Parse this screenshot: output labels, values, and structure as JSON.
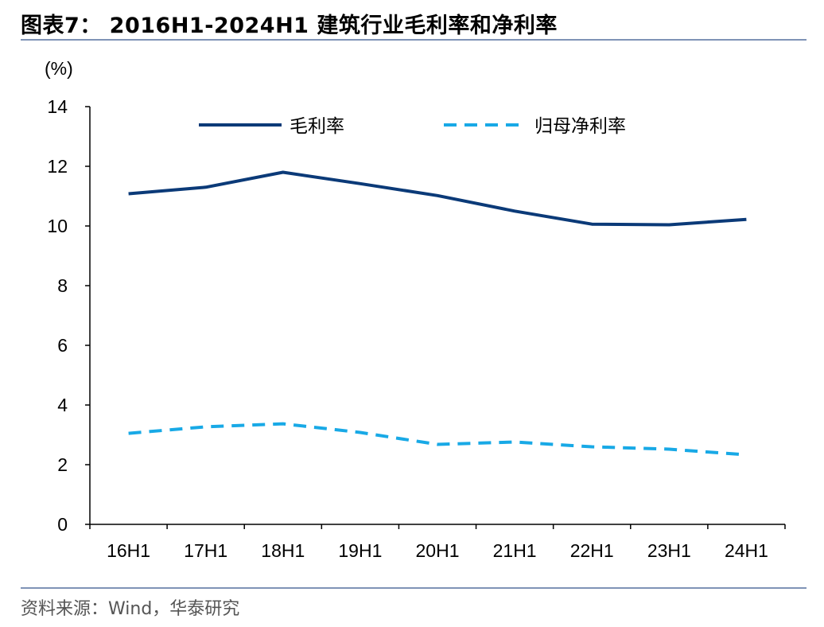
{
  "header": {
    "title": "图表7： 2016H1-2024H1 建筑行业毛利率和净利率"
  },
  "footer": {
    "source": "资料来源：Wind，华泰研究"
  },
  "colors": {
    "rule": "#7f93b6",
    "gross_margin": "#0b3a78",
    "net_margin": "#18a9e6",
    "axis": "#000000"
  },
  "chart_data": {
    "type": "line",
    "unit_label": "(%)",
    "categories": [
      "16H1",
      "17H1",
      "18H1",
      "19H1",
      "20H1",
      "21H1",
      "22H1",
      "23H1",
      "24H1"
    ],
    "ylim": [
      0,
      14
    ],
    "yticks": [
      0,
      2,
      4,
      6,
      8,
      10,
      12,
      14
    ],
    "grid": false,
    "legend_position": "top",
    "series": [
      {
        "name": "毛利率",
        "style": "solid",
        "values": [
          11.08,
          11.3,
          11.8,
          11.42,
          11.02,
          10.5,
          10.06,
          10.04,
          10.22
        ]
      },
      {
        "name": "归母净利率",
        "style": "dashed",
        "values": [
          3.05,
          3.27,
          3.37,
          3.08,
          2.68,
          2.76,
          2.6,
          2.52,
          2.33
        ]
      }
    ]
  }
}
